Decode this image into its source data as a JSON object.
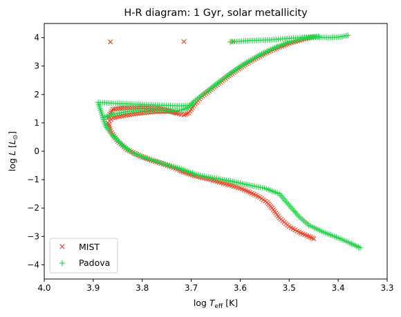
{
  "chart_data": {
    "type": "scatter",
    "title": "H-R diagram: 1 Gyr, solar metallicity",
    "xlabel": {
      "prefix": "log ",
      "var": "T",
      "sub": "eff",
      "suffix": " [K]"
    },
    "ylabel": {
      "prefix": "log ",
      "var": "L",
      "bracket_open": " [",
      "unit": "L",
      "sub": "⊙",
      "bracket_close": "]"
    },
    "xlim": [
      4.0,
      3.3
    ],
    "ylim": [
      -4.5,
      4.5
    ],
    "x_inverted": true,
    "x_ticks": [
      "4.0",
      "3.9",
      "3.8",
      "3.7",
      "3.6",
      "3.5",
      "3.4",
      "3.3"
    ],
    "x_tick_values": [
      4.0,
      3.9,
      3.8,
      3.7,
      3.6,
      3.5,
      3.4,
      3.3
    ],
    "y_ticks": [
      "−4",
      "−3",
      "−2",
      "−1",
      "0",
      "1",
      "2",
      "3",
      "4"
    ],
    "y_tick_values": [
      -4,
      -3,
      -2,
      -1,
      0,
      1,
      2,
      3,
      4
    ],
    "grid": false,
    "legend_position": "lower-left",
    "series": [
      {
        "name": "MIST",
        "marker": "x",
        "color": "#e8492c",
        "tracks": [
          [
            [
              3.45,
              -3.08
            ],
            [
              3.46,
              -3.0
            ],
            [
              3.48,
              -2.85
            ],
            [
              3.5,
              -2.65
            ],
            [
              3.52,
              -2.35
            ],
            [
              3.535,
              -2.0
            ],
            [
              3.545,
              -1.8
            ],
            [
              3.56,
              -1.62
            ],
            [
              3.58,
              -1.45
            ],
            [
              3.6,
              -1.3
            ],
            [
              3.63,
              -1.15
            ],
            [
              3.66,
              -1.0
            ],
            [
              3.69,
              -0.88
            ],
            [
              3.72,
              -0.7
            ],
            [
              3.74,
              -0.55
            ],
            [
              3.77,
              -0.38
            ],
            [
              3.8,
              -0.2
            ],
            [
              3.83,
              0.05
            ],
            [
              3.85,
              0.35
            ],
            [
              3.865,
              0.72
            ],
            [
              3.87,
              1.0
            ],
            [
              3.86,
              1.18
            ],
            [
              3.83,
              1.28
            ],
            [
              3.8,
              1.35
            ],
            [
              3.77,
              1.4
            ],
            [
              3.74,
              1.4
            ],
            [
              3.725,
              1.32
            ],
            [
              3.715,
              1.28
            ],
            [
              3.705,
              1.35
            ],
            [
              3.695,
              1.6
            ],
            [
              3.68,
              1.9
            ],
            [
              3.65,
              2.3
            ],
            [
              3.62,
              2.7
            ],
            [
              3.59,
              3.05
            ],
            [
              3.56,
              3.35
            ],
            [
              3.53,
              3.6
            ],
            [
              3.5,
              3.8
            ],
            [
              3.47,
              3.95
            ],
            [
              3.45,
              4.02
            ]
          ],
          [
            [
              3.87,
              1.18
            ],
            [
              3.86,
              1.48
            ],
            [
              3.84,
              1.52
            ],
            [
              3.8,
              1.55
            ],
            [
              3.77,
              1.52
            ],
            [
              3.75,
              1.45
            ],
            [
              3.73,
              1.35
            ]
          ]
        ],
        "isolated": [
          [
            3.865,
            3.85
          ],
          [
            3.715,
            3.86
          ],
          [
            3.615,
            3.86
          ]
        ]
      },
      {
        "name": "Padova",
        "marker": "+",
        "color": "#22d44a",
        "tracks": [
          [
            [
              3.355,
              -3.4
            ],
            [
              3.38,
              -3.2
            ],
            [
              3.4,
              -3.05
            ],
            [
              3.43,
              -2.85
            ],
            [
              3.46,
              -2.6
            ],
            [
              3.48,
              -2.3
            ],
            [
              3.5,
              -1.9
            ],
            [
              3.52,
              -1.5
            ],
            [
              3.55,
              -1.3
            ],
            [
              3.58,
              -1.2
            ],
            [
              3.62,
              -1.05
            ],
            [
              3.66,
              -0.92
            ],
            [
              3.69,
              -0.82
            ],
            [
              3.72,
              -0.62
            ],
            [
              3.76,
              -0.42
            ],
            [
              3.79,
              -0.25
            ],
            [
              3.82,
              -0.05
            ],
            [
              3.84,
              0.2
            ],
            [
              3.86,
              0.55
            ],
            [
              3.875,
              0.9
            ],
            [
              3.88,
              1.18
            ],
            [
              3.86,
              1.3
            ],
            [
              3.83,
              1.4
            ],
            [
              3.8,
              1.45
            ],
            [
              3.77,
              1.45
            ],
            [
              3.74,
              1.42
            ],
            [
              3.72,
              1.45
            ],
            [
              3.705,
              1.55
            ],
            [
              3.695,
              1.75
            ],
            [
              3.68,
              1.95
            ],
            [
              3.65,
              2.35
            ],
            [
              3.62,
              2.75
            ],
            [
              3.59,
              3.1
            ],
            [
              3.56,
              3.4
            ],
            [
              3.53,
              3.65
            ],
            [
              3.5,
              3.85
            ],
            [
              3.47,
              3.98
            ],
            [
              3.45,
              4.02
            ],
            [
              3.42,
              4.0
            ],
            [
              3.4,
              4.02
            ],
            [
              3.38,
              4.08
            ]
          ],
          [
            [
              3.88,
              1.18
            ],
            [
              3.885,
              1.45
            ],
            [
              3.89,
              1.72
            ],
            [
              3.85,
              1.68
            ],
            [
              3.8,
              1.65
            ],
            [
              3.76,
              1.62
            ],
            [
              3.72,
              1.6
            ],
            [
              3.7,
              1.62
            ]
          ],
          [
            [
              3.62,
              3.85
            ],
            [
              3.58,
              3.9
            ],
            [
              3.54,
              3.92
            ],
            [
              3.5,
              3.98
            ],
            [
              3.46,
              4.02
            ],
            [
              3.44,
              4.05
            ]
          ]
        ],
        "isolated": []
      }
    ]
  }
}
